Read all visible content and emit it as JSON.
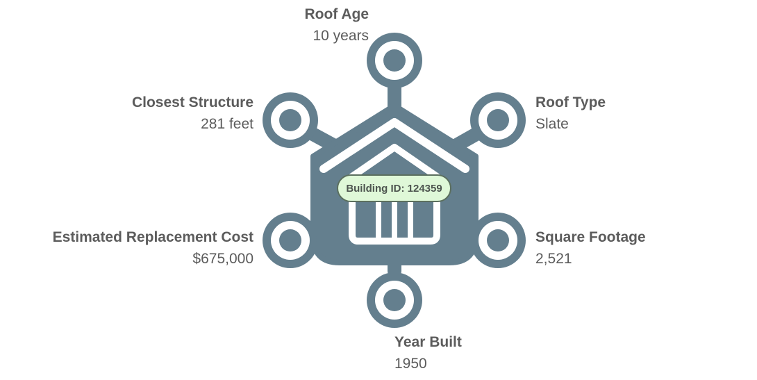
{
  "building_id_label": "Building ID: 124359",
  "attributes": {
    "roof_age": {
      "title": "Roof Age",
      "value": "10 years"
    },
    "roof_type": {
      "title": "Roof Type",
      "value": "Slate"
    },
    "closest_structure": {
      "title": "Closest Structure",
      "value": "281 feet"
    },
    "square_footage": {
      "title": "Square Footage",
      "value": "2,521"
    },
    "estimated_replacement_cost": {
      "title": "Estimated Replacement Cost",
      "value": "$675,000"
    },
    "year_built": {
      "title": "Year Built",
      "value": "1950"
    }
  },
  "colors": {
    "icon": "#647f8e",
    "badge_fill": "#dff8d8",
    "badge_border": "#5b6f5e",
    "text": "#5c5c5c"
  }
}
